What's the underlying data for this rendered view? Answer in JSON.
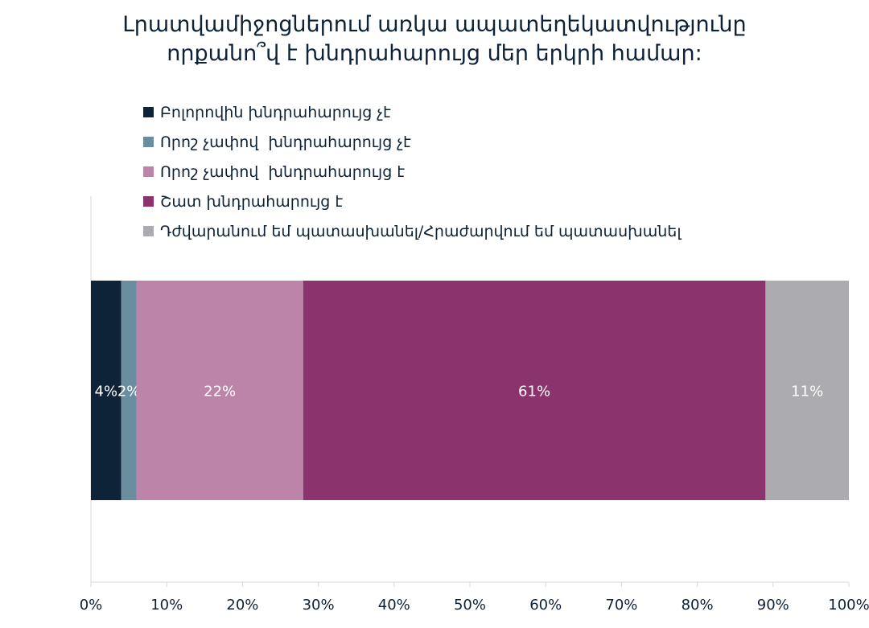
{
  "chart_data": {
    "type": "bar",
    "orientation": "horizontal-stacked-100",
    "title_lines": [
      "Լրատվամիջոցներում առկա ապատեղեկատվությունը",
      "որքանո՞վ է խնդրահարույց մեր երկրի համար:"
    ],
    "xlim": [
      0,
      100
    ],
    "x_ticks": [
      "0%",
      "10%",
      "20%",
      "30%",
      "40%",
      "50%",
      "60%",
      "70%",
      "80%",
      "90%",
      "100%"
    ],
    "legend_position": "top",
    "grid": false,
    "series": [
      {
        "name": "Բոլորովին խնդրահարույց չէ",
        "value": 4,
        "label": "4%",
        "color": "#0f2338"
      },
      {
        "name": "Որոշ չափով  խնդրահարույց չէ",
        "value": 2,
        "label": "2%",
        "color": "#6a8ea0"
      },
      {
        "name": "Որոշ չափով  խնդրահարույց է",
        "value": 22,
        "label": "22%",
        "color": "#bc84a9"
      },
      {
        "name": "Շատ խնդրահարույց է",
        "value": 61,
        "label": "61%",
        "color": "#8b336c"
      },
      {
        "name": "Դժվարանում եմ պատասխանել/Հրաժարվում եմ պատասխանել",
        "value": 11,
        "label": "11%",
        "color": "#acabb0"
      }
    ]
  }
}
